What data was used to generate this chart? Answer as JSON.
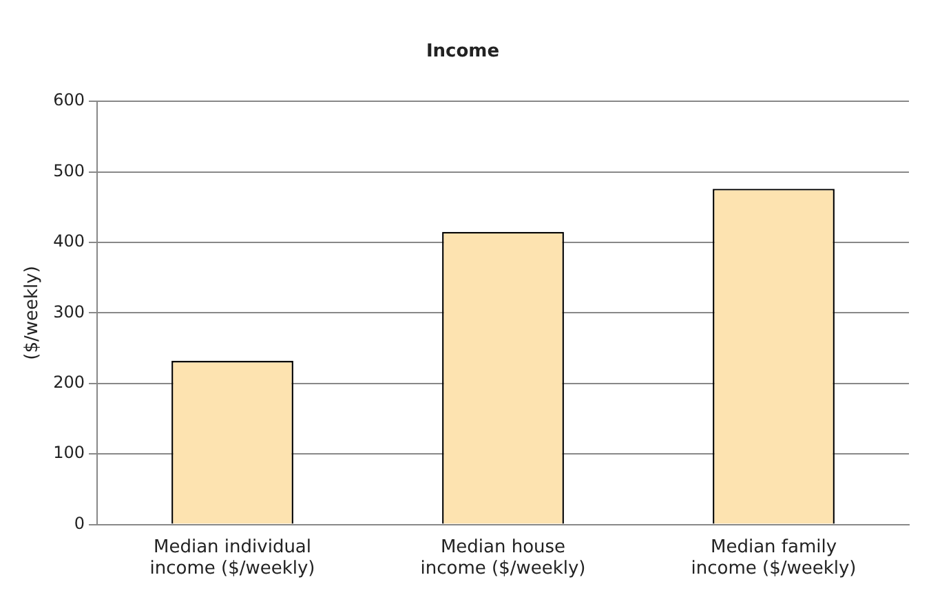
{
  "chart_data": {
    "type": "bar",
    "title": "Income",
    "ylabel": "($/weekly)",
    "categories": [
      "Median individual income ($/weekly)",
      "Median house income ($/weekly)",
      "Median family income ($/weekly)"
    ],
    "values": [
      232,
      415,
      476
    ],
    "color": "#fde3b0",
    "ylim": [
      0,
      600
    ],
    "yticks": [
      0,
      100,
      200,
      300,
      400,
      500,
      600
    ],
    "grid": "y"
  }
}
